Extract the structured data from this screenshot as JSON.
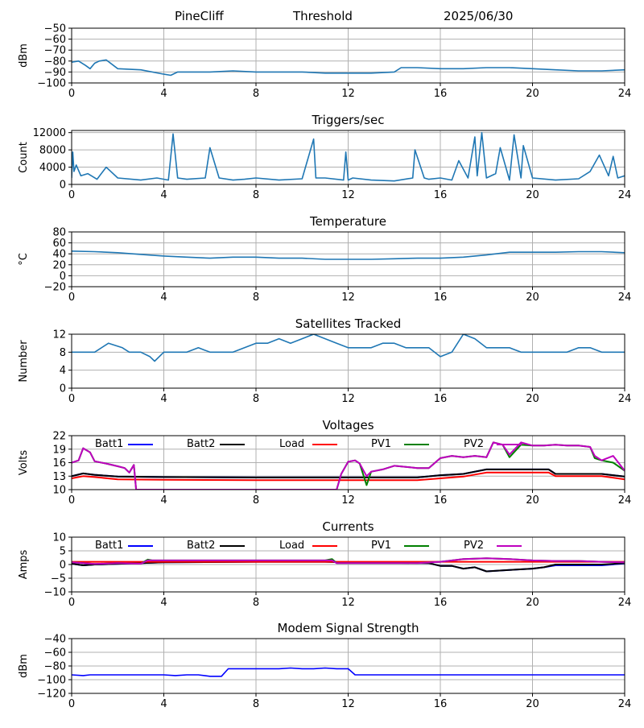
{
  "header": {
    "station": "PineCliff",
    "mode": "Threshold",
    "date": "2025/06/30"
  },
  "chart_data": [
    {
      "type": "line",
      "title": "",
      "ylabel": "dBm",
      "xlim": [
        0,
        24
      ],
      "xticks": [
        0,
        4,
        8,
        12,
        16,
        20,
        24
      ],
      "ylim": [
        -100,
        -50
      ],
      "yticks": [
        -100,
        -90,
        -80,
        -70,
        -60,
        -50
      ],
      "grid": true,
      "series": [
        {
          "color": "#1f77b4",
          "x": [
            0,
            0.3,
            0.6,
            0.8,
            1.0,
            1.2,
            1.5,
            2,
            3,
            4,
            4.3,
            4.6,
            5,
            6,
            7,
            8,
            9,
            10,
            11,
            12,
            13,
            14,
            14.3,
            15,
            16,
            17,
            18,
            19,
            20,
            21,
            22,
            23,
            24
          ],
          "y": [
            -81,
            -80,
            -84,
            -87,
            -82,
            -80,
            -79,
            -87,
            -88,
            -92,
            -93,
            -90,
            -90,
            -90,
            -89,
            -90,
            -90,
            -90,
            -91,
            -91,
            -91,
            -90,
            -86,
            -86,
            -87,
            -87,
            -86,
            -86,
            -87,
            -88,
            -89,
            -89,
            -88
          ]
        }
      ]
    },
    {
      "type": "line",
      "title": "Triggers/sec",
      "ylabel": "Count",
      "xlim": [
        0,
        24
      ],
      "xticks": [
        0,
        4,
        8,
        12,
        16,
        20,
        24
      ],
      "ylim": [
        0,
        12500
      ],
      "yticks": [
        0,
        4000,
        8000,
        12000
      ],
      "grid": true,
      "series": [
        {
          "color": "#1f77b4",
          "x": [
            0,
            0.05,
            0.1,
            0.2,
            0.4,
            0.7,
            1.1,
            1.5,
            2,
            3,
            3.7,
            4.2,
            4.4,
            4.6,
            5,
            5.8,
            6,
            6.4,
            7,
            7.5,
            8,
            9,
            10,
            10.5,
            10.6,
            11,
            11.8,
            11.9,
            12,
            12.2,
            13,
            14,
            14.8,
            14.9,
            15.3,
            15.5,
            16,
            16.5,
            16.8,
            17.2,
            17.5,
            17.6,
            17.8,
            18,
            18.4,
            18.6,
            19,
            19.2,
            19.5,
            19.6,
            20,
            21,
            22,
            22.5,
            22.9,
            23.3,
            23.5,
            23.7,
            24
          ],
          "y": [
            1500,
            7500,
            3000,
            4500,
            2000,
            2500,
            1200,
            4000,
            1500,
            1000,
            1500,
            1000,
            11700,
            1500,
            1200,
            1500,
            8500,
            1500,
            1000,
            1200,
            1500,
            1000,
            1300,
            10500,
            1500,
            1500,
            1000,
            7500,
            1000,
            1500,
            1000,
            800,
            1500,
            8000,
            1500,
            1200,
            1500,
            1000,
            5500,
            1500,
            11000,
            2000,
            12000,
            1500,
            2500,
            8500,
            1000,
            11500,
            1500,
            9000,
            1500,
            1000,
            1300,
            3000,
            6800,
            2000,
            6500,
            1500,
            2000
          ]
        }
      ]
    },
    {
      "type": "line",
      "title": "Temperature",
      "ylabel": "°C",
      "xlim": [
        0,
        24
      ],
      "xticks": [
        0,
        4,
        8,
        12,
        16,
        20,
        24
      ],
      "ylim": [
        -20,
        80
      ],
      "yticks": [
        -20,
        0,
        20,
        40,
        60,
        80
      ],
      "grid": true,
      "series": [
        {
          "color": "#1f77b4",
          "x": [
            0,
            1,
            2,
            3,
            4,
            5,
            6,
            7,
            8,
            9,
            10,
            11,
            12,
            13,
            14,
            15,
            16,
            17,
            18,
            19,
            20,
            21,
            22,
            23,
            24
          ],
          "y": [
            45,
            44,
            42,
            39,
            36,
            34,
            32,
            34,
            34,
            32,
            32,
            30,
            30,
            30,
            31,
            32,
            32,
            34,
            38,
            43,
            43,
            43,
            44,
            44,
            42
          ]
        }
      ]
    },
    {
      "type": "line",
      "title": "Satellites Tracked",
      "ylabel": "Number",
      "xlim": [
        0,
        24
      ],
      "xticks": [
        0,
        4,
        8,
        12,
        16,
        20,
        24
      ],
      "ylim": [
        0,
        12
      ],
      "yticks": [
        0,
        4,
        8,
        12
      ],
      "grid": true,
      "series": [
        {
          "color": "#1f77b4",
          "x": [
            0,
            1,
            1.6,
            2.2,
            2.5,
            3,
            3.4,
            3.6,
            4,
            4.5,
            5,
            5.5,
            6,
            6.5,
            7,
            7.5,
            8,
            8.5,
            9,
            9.5,
            10,
            10.5,
            11,
            11.5,
            12,
            12.5,
            13,
            13.5,
            14,
            14.5,
            15,
            15.5,
            16,
            16.5,
            17,
            17.5,
            18,
            18.5,
            19,
            19.5,
            20,
            20.5,
            21,
            21.5,
            22,
            22.5,
            23,
            23.5,
            24
          ],
          "y": [
            8,
            8,
            10,
            9,
            8,
            8,
            7,
            6,
            8,
            8,
            8,
            9,
            8,
            8,
            8,
            9,
            10,
            10,
            11,
            10,
            11,
            12,
            11,
            10,
            9,
            9,
            9,
            10,
            10,
            9,
            9,
            9,
            7,
            8,
            12,
            11,
            9,
            9,
            9,
            8,
            8,
            8,
            8,
            8,
            9,
            9,
            8,
            8,
            8
          ]
        }
      ]
    },
    {
      "type": "line",
      "title": "Voltages",
      "ylabel": "Volts",
      "xlim": [
        0,
        24
      ],
      "xticks": [
        0,
        4,
        8,
        12,
        16,
        20,
        24
      ],
      "ylim": [
        10,
        22
      ],
      "yticks": [
        10,
        13,
        16,
        19,
        22
      ],
      "grid": true,
      "series": [
        {
          "name": "Batt1",
          "color": "#0000ff",
          "x": [
            0,
            0.5,
            1,
            2,
            4,
            8,
            12,
            15,
            16,
            17,
            18,
            19,
            20,
            20.7,
            21,
            22,
            23,
            24
          ],
          "y": [
            13,
            13.6,
            13.3,
            12.9,
            12.8,
            12.7,
            12.7,
            12.7,
            13.2,
            13.5,
            14.5,
            14.5,
            14.5,
            14.5,
            13.5,
            13.5,
            13.5,
            12.9
          ]
        },
        {
          "name": "Batt2",
          "color": "#000000",
          "x": [
            0,
            0.5,
            1,
            2,
            4,
            8,
            12,
            15,
            16,
            17,
            18,
            19,
            20,
            20.7,
            21,
            22,
            23,
            24
          ],
          "y": [
            13,
            13.6,
            13.3,
            12.9,
            12.8,
            12.7,
            12.7,
            12.7,
            13.2,
            13.5,
            14.5,
            14.5,
            14.5,
            14.5,
            13.5,
            13.5,
            13.5,
            12.9
          ]
        },
        {
          "name": "Load",
          "color": "#ff0000",
          "x": [
            0,
            0.5,
            1,
            2,
            4,
            8,
            12,
            15,
            16,
            17,
            18,
            19,
            20,
            20.7,
            21,
            22,
            23,
            24
          ],
          "y": [
            12.5,
            13,
            12.8,
            12.3,
            12.2,
            12.1,
            12.1,
            12.1,
            12.5,
            12.9,
            13.8,
            13.8,
            13.8,
            13.8,
            13,
            13,
            13,
            12.3
          ]
        },
        {
          "name": "PV1",
          "color": "#008000",
          "x": [
            0,
            0.3,
            0.5,
            0.8,
            1,
            1.5,
            2,
            2.3,
            2.5,
            2.7,
            2.8,
            11.5,
            11.7,
            12,
            12.3,
            12.5,
            12.8,
            13,
            13.5,
            14,
            15,
            15.5,
            16,
            16.5,
            17,
            17.5,
            18,
            18.3,
            18.7,
            19,
            19.5,
            20,
            20.5,
            21,
            21.5,
            22,
            22.5,
            22.7,
            23,
            23.5,
            24
          ],
          "y": [
            16,
            16.5,
            19.2,
            18.3,
            16.3,
            15.8,
            15.2,
            14.8,
            13.8,
            15.5,
            10,
            10,
            13.5,
            16.2,
            16.5,
            15.8,
            11,
            14,
            14.5,
            15.3,
            14.8,
            14.8,
            17,
            17.5,
            17.2,
            17.5,
            17.2,
            20.5,
            20,
            17.2,
            20,
            19.8,
            19.8,
            20,
            19.8,
            19.8,
            19.5,
            17,
            16.5,
            16,
            14.2
          ]
        },
        {
          "name": "PV2",
          "color": "#bf00bf",
          "x": [
            0,
            0.3,
            0.5,
            0.8,
            1,
            1.5,
            2,
            2.3,
            2.5,
            2.7,
            2.8,
            11.5,
            11.7,
            12,
            12.3,
            12.5,
            12.8,
            13,
            13.5,
            14,
            15,
            15.5,
            16,
            16.5,
            17,
            17.5,
            18,
            18.3,
            18.7,
            19,
            19.5,
            20,
            20.5,
            21,
            21.5,
            22,
            22.5,
            22.7,
            23,
            23.5,
            24
          ],
          "y": [
            16,
            16.5,
            19.2,
            18.3,
            16.3,
            15.8,
            15.2,
            14.8,
            13.8,
            15.5,
            10,
            10,
            13.5,
            16.2,
            16.5,
            15.8,
            13,
            14,
            14.5,
            15.3,
            14.8,
            14.8,
            17,
            17.5,
            17.2,
            17.5,
            17.2,
            20.5,
            20,
            17.8,
            20.5,
            19.8,
            19.8,
            20,
            19.8,
            19.8,
            19.5,
            17.5,
            16.5,
            17.5,
            14.2
          ]
        }
      ],
      "legend": [
        "Batt1",
        "Batt2",
        "Load",
        "PV1",
        "PV2"
      ]
    },
    {
      "type": "line",
      "title": "Currents",
      "ylabel": "Amps",
      "xlim": [
        0,
        24
      ],
      "xticks": [
        0,
        4,
        8,
        12,
        16,
        20,
        24
      ],
      "ylim": [
        -10,
        10
      ],
      "yticks": [
        -10,
        -5,
        0,
        5,
        10
      ],
      "grid": true,
      "series": [
        {
          "name": "Batt1",
          "color": "#0000ff",
          "x": [
            0,
            0.5,
            1,
            3,
            4,
            8,
            11,
            12,
            15.5,
            16,
            16.5,
            17,
            17.5,
            18,
            19,
            20,
            20.5,
            21,
            22,
            23,
            24
          ],
          "y": [
            0.3,
            -0.3,
            0,
            0.5,
            0.8,
            1,
            1,
            0.8,
            0.5,
            -0.5,
            -0.5,
            -1.5,
            -1,
            -2.5,
            -2,
            -1.5,
            -1,
            -0.3,
            -0.3,
            -0.3,
            0.4
          ]
        },
        {
          "name": "Batt2",
          "color": "#000000",
          "x": [
            0,
            0.5,
            1,
            3,
            4,
            8,
            11,
            12,
            15.5,
            16,
            16.5,
            17,
            17.5,
            18,
            19,
            20,
            20.5,
            21,
            22,
            23,
            24
          ],
          "y": [
            0.3,
            -0.3,
            0,
            0.5,
            0.8,
            1,
            1,
            0.8,
            0.5,
            -0.5,
            -0.5,
            -1.5,
            -1,
            -2.5,
            -2,
            -1.5,
            -1,
            0,
            0,
            0,
            0.5
          ]
        },
        {
          "name": "Load",
          "color": "#ff0000",
          "x": [
            0,
            4,
            8,
            12,
            16,
            20,
            24
          ],
          "y": [
            1,
            1,
            1,
            1,
            1,
            1,
            1
          ]
        },
        {
          "name": "PV1",
          "color": "#008000",
          "x": [
            0,
            0.5,
            1,
            2,
            3,
            3.3,
            3.5,
            8,
            10,
            11,
            11.3,
            11.5,
            13,
            15,
            16,
            17,
            18,
            19,
            20,
            21,
            22,
            23,
            24
          ],
          "y": [
            0.8,
            0.5,
            0.2,
            0.5,
            0.3,
            1.8,
            1.5,
            1.5,
            1.5,
            1.5,
            2,
            0.5,
            0.5,
            0.5,
            1,
            2,
            2.3,
            2,
            1.5,
            1.3,
            1.3,
            1,
            0.8
          ]
        },
        {
          "name": "PV2",
          "color": "#bf00bf",
          "x": [
            0,
            0.5,
            1,
            2,
            3,
            3.3,
            3.5,
            8,
            10,
            11,
            11.3,
            11.5,
            13,
            15,
            16,
            17,
            18,
            19,
            20,
            21,
            22,
            23,
            24
          ],
          "y": [
            0.8,
            0.5,
            0.2,
            0.5,
            0.3,
            1.5,
            1.5,
            1.5,
            1.5,
            1.5,
            1.5,
            0.5,
            0.5,
            0.5,
            1,
            2,
            2.3,
            2,
            1.5,
            1.3,
            1.3,
            1,
            0.8
          ]
        }
      ],
      "legend": [
        "Batt1",
        "Batt2",
        "Load",
        "PV1",
        "PV2"
      ]
    },
    {
      "type": "line",
      "title": "Modem Signal Strength",
      "ylabel": "dBm",
      "xlim": [
        0,
        24
      ],
      "xticks": [
        0,
        4,
        8,
        12,
        16,
        20,
        24
      ],
      "ylim": [
        -120,
        -40
      ],
      "yticks": [
        -120,
        -100,
        -80,
        -60,
        -40
      ],
      "grid": true,
      "series": [
        {
          "color": "#0000ff",
          "x": [
            0,
            0.5,
            0.8,
            4,
            4.5,
            5,
            5.5,
            6,
            6.5,
            6.8,
            7,
            8,
            9,
            9.5,
            10,
            10.5,
            11,
            11.5,
            12,
            12.3,
            13,
            16,
            20,
            24
          ],
          "y": [
            -93,
            -94,
            -93,
            -93,
            -94,
            -93,
            -93,
            -95,
            -95,
            -84,
            -84,
            -84,
            -84,
            -83,
            -84,
            -84,
            -83,
            -84,
            -84,
            -93,
            -93,
            -93,
            -93,
            -93
          ]
        }
      ]
    }
  ]
}
